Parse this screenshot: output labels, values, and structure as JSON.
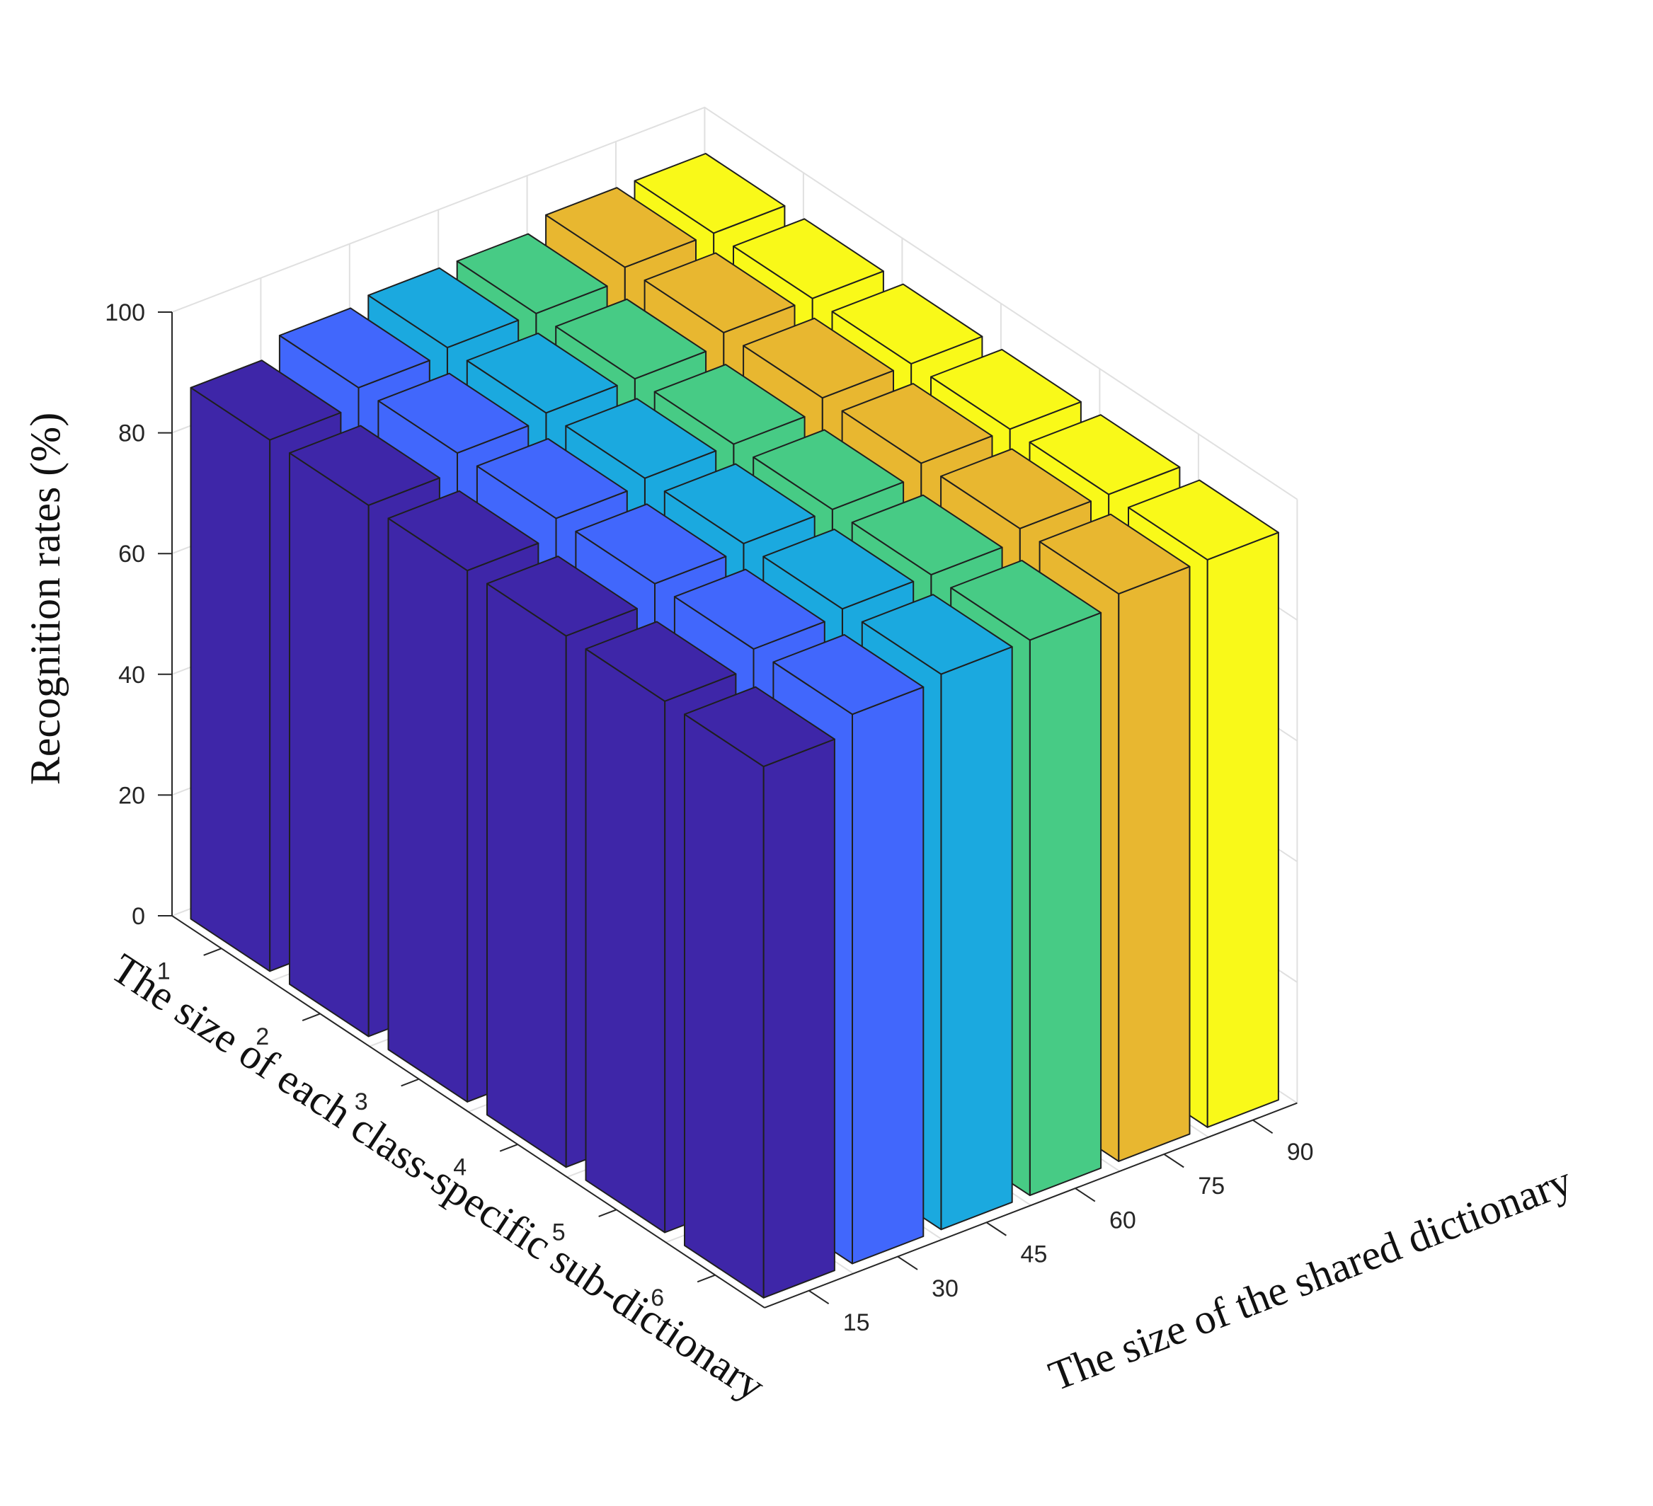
{
  "chart_data": {
    "type": "bar3d",
    "zlabel": "Recognition rates (%)",
    "xlabel": "The size of each class-specific sub-dictionary",
    "ylabel": "The size of the shared dictionary",
    "zlim": [
      0,
      100
    ],
    "z_ticks": [
      "0",
      "20",
      "40",
      "60",
      "80",
      "100"
    ],
    "x_categories": [
      "1",
      "2",
      "3",
      "4",
      "5",
      "6"
    ],
    "y_categories": [
      "15",
      "30",
      "45",
      "60",
      "75",
      "90"
    ],
    "grid": true,
    "series": [
      {
        "y": "15",
        "color": "#3e26a8",
        "values": [
          88,
          88,
          88,
          88,
          88,
          88
        ]
      },
      {
        "y": "30",
        "color": "#4167fc",
        "values": [
          91,
          91,
          91,
          91,
          91,
          91
        ]
      },
      {
        "y": "45",
        "color": "#1ba9df",
        "values": [
          92,
          92,
          92,
          92,
          92,
          92
        ]
      },
      {
        "y": "60",
        "color": "#47cb85",
        "values": [
          92,
          92,
          92,
          92,
          92,
          92
        ]
      },
      {
        "y": "75",
        "color": "#e8b730",
        "values": [
          94,
          94,
          94,
          94,
          94,
          94
        ]
      },
      {
        "y": "90",
        "color": "#f9f919",
        "values": [
          94,
          94,
          94,
          94,
          94,
          94
        ]
      }
    ]
  }
}
